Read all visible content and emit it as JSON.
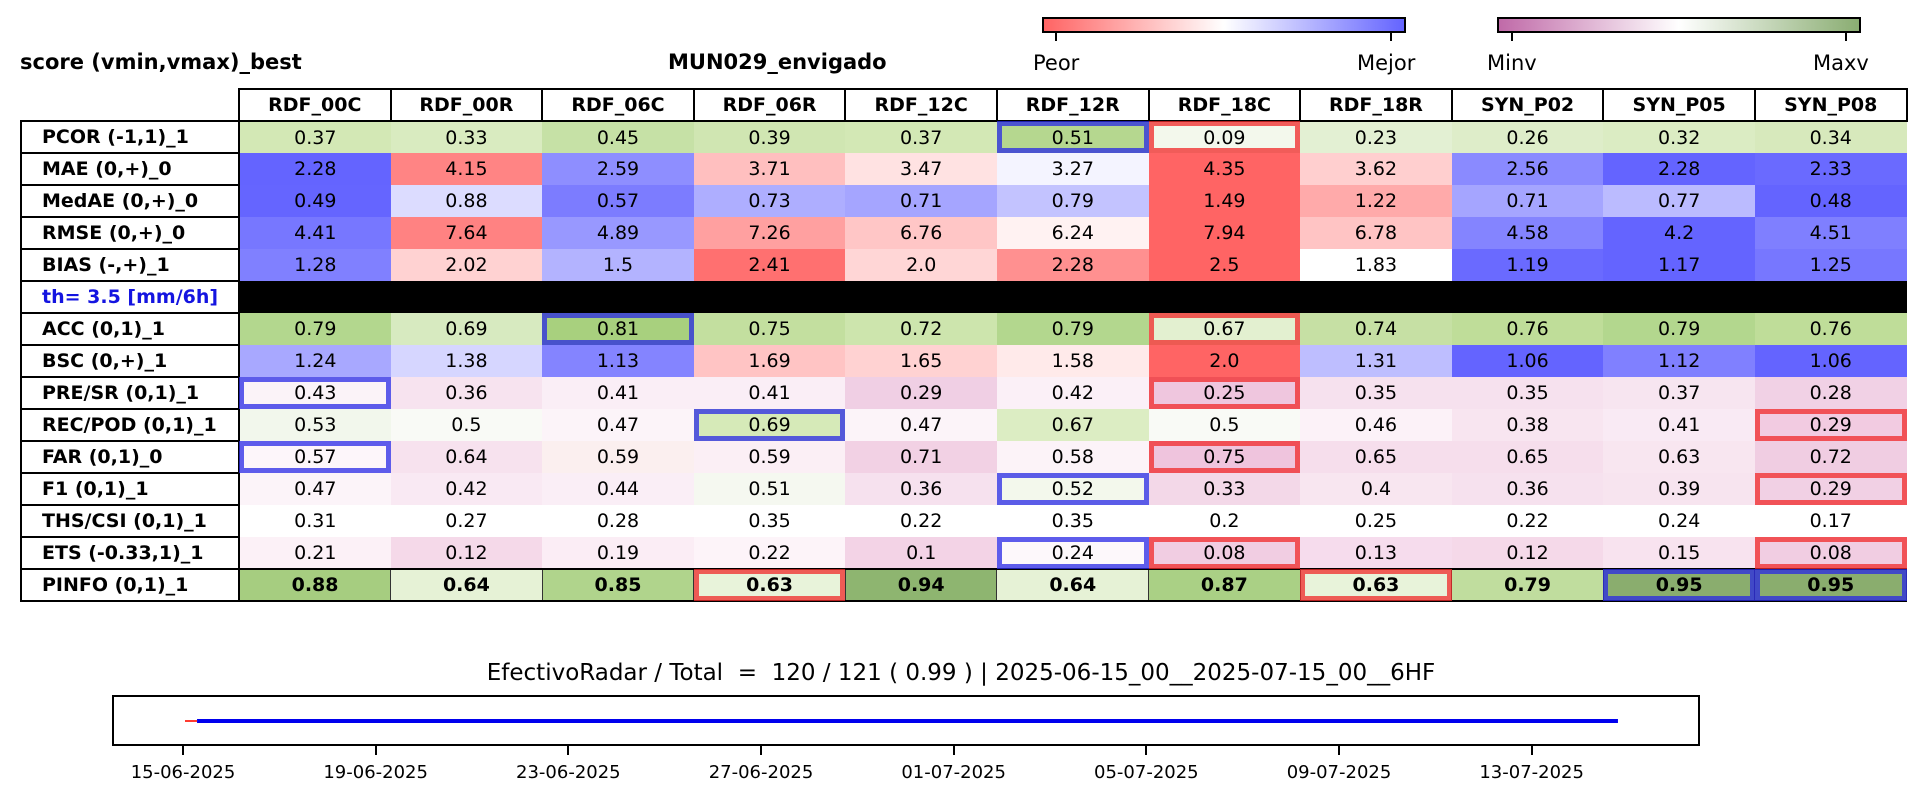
{
  "header": {
    "left_title": "score (vmin,vmax)_best",
    "station_title": "MUN029_envigado"
  },
  "colorbars": [
    {
      "min_label": "Peor",
      "max_label": "Mejor",
      "gradient": [
        "#ff6464",
        "#ffffff",
        "#6464ff"
      ]
    },
    {
      "min_label": "Minv",
      "max_label": "Maxv",
      "gradient": [
        "#c06aa8",
        "#ffffff",
        "#8aad72"
      ]
    }
  ],
  "columns": [
    "RDF_00C",
    "RDF_00R",
    "RDF_06C",
    "RDF_06R",
    "RDF_12C",
    "RDF_12R",
    "RDF_18C",
    "RDF_18R",
    "SYN_P02",
    "SYN_P05",
    "SYN_P08"
  ],
  "rows": [
    {
      "label": "PCOR (-1,1)_1",
      "values": [
        "0.37",
        "0.33",
        "0.45",
        "0.39",
        "0.37",
        "0.51",
        "0.09",
        "0.23",
        "0.26",
        "0.32",
        "0.34"
      ],
      "colors": [
        "#d3e8b5",
        "#d9ebc0",
        "#c6e1a6",
        "#d0e6b2",
        "#d3e8b5",
        "#b5d78f",
        "#f3f8ec",
        "#e3f0d3",
        "#deedc9",
        "#dbecc3",
        "#d7e9bc"
      ],
      "best": [
        5
      ],
      "worst": [
        6
      ]
    },
    {
      "label": "MAE (0,+)_0",
      "values": [
        "2.28",
        "4.15",
        "2.59",
        "3.71",
        "3.47",
        "3.27",
        "4.35",
        "3.62",
        "2.56",
        "2.28",
        "2.33"
      ],
      "colors": [
        "#6464ff",
        "#ff8484",
        "#8e8eff",
        "#ffbfbf",
        "#ffe2e2",
        "#f4f4ff",
        "#ff6464",
        "#ffcfcf",
        "#8a8aff",
        "#6464ff",
        "#6a6aff"
      ],
      "best": [],
      "worst": []
    },
    {
      "label": "MedAE (0,+)_0",
      "values": [
        "0.49",
        "0.88",
        "0.57",
        "0.73",
        "0.71",
        "0.79",
        "1.49",
        "1.22",
        "0.71",
        "0.77",
        "0.48"
      ],
      "colors": [
        "#6565ff",
        "#dcdcff",
        "#7c7cff",
        "#aeaeff",
        "#a5a5ff",
        "#c3c3ff",
        "#ff6464",
        "#ffaaaa",
        "#a5a5ff",
        "#bbbbff",
        "#6464ff"
      ],
      "best": [],
      "worst": []
    },
    {
      "label": "RMSE (0,+)_0",
      "values": [
        "4.41",
        "7.64",
        "4.89",
        "7.26",
        "6.76",
        "6.24",
        "7.94",
        "6.78",
        "4.58",
        "4.2",
        "4.51"
      ],
      "colors": [
        "#7777ff",
        "#ff8282",
        "#9898ff",
        "#ffa0a0",
        "#ffc6c6",
        "#fff2f2",
        "#ff6464",
        "#ffc4c4",
        "#8484ff",
        "#6464ff",
        "#7f7fff"
      ],
      "best": [],
      "worst": []
    },
    {
      "label": "BIAS (-,+)_1",
      "values": [
        "1.28",
        "2.02",
        "1.5",
        "2.41",
        "2.0",
        "2.28",
        "2.5",
        "1.83",
        "1.19",
        "1.17",
        "1.25"
      ],
      "colors": [
        "#8080ff",
        "#ffd2d2",
        "#b3b3ff",
        "#ff7070",
        "#ffd6d6",
        "#ff9090",
        "#ff6464",
        "#ffffff",
        "#6a6aff",
        "#6464ff",
        "#7777ff"
      ],
      "best": [],
      "worst": []
    },
    {
      "label": "th= 3.5 [mm/6h]",
      "separator": true
    },
    {
      "label": "ACC (0,1)_1",
      "values": [
        "0.79",
        "0.69",
        "0.81",
        "0.75",
        "0.72",
        "0.79",
        "0.67",
        "0.74",
        "0.76",
        "0.79",
        "0.76"
      ],
      "colors": [
        "#b3d78e",
        "#d7eac0",
        "#a8d07e",
        "#c3df9f",
        "#cde5ad",
        "#b3d78e",
        "#e3f0d0",
        "#c6e0a4",
        "#bfdd99",
        "#b3d78e",
        "#bfdd99"
      ],
      "best": [
        2
      ],
      "worst": [
        6
      ]
    },
    {
      "label": "BSC (0,+)_1",
      "values": [
        "1.24",
        "1.38",
        "1.13",
        "1.69",
        "1.65",
        "1.58",
        "2.0",
        "1.31",
        "1.06",
        "1.12",
        "1.06"
      ],
      "colors": [
        "#a8a8ff",
        "#d6d6ff",
        "#8484ff",
        "#ffc4c4",
        "#ffd2d2",
        "#ffeaea",
        "#ff6464",
        "#bebeff",
        "#6464ff",
        "#8080ff",
        "#6464ff"
      ],
      "best": [],
      "worst": []
    },
    {
      "label": "PRE/SR (0,1)_1",
      "values": [
        "0.43",
        "0.36",
        "0.41",
        "0.41",
        "0.29",
        "0.42",
        "0.25",
        "0.35",
        "0.35",
        "0.37",
        "0.28"
      ],
      "colors": [
        "#fbf3f8",
        "#f7e3ef",
        "#faeef6",
        "#faeef6",
        "#f0cfe4",
        "#fbf0f7",
        "#efc6de",
        "#f6e1ee",
        "#f6e1ee",
        "#f7e5f0",
        "#f1d1e5"
      ],
      "best": [
        0
      ],
      "worst": [
        6
      ]
    },
    {
      "label": "REC/POD (0,1)_1",
      "values": [
        "0.53",
        "0.5",
        "0.47",
        "0.69",
        "0.47",
        "0.67",
        "0.5",
        "0.46",
        "0.38",
        "0.41",
        "0.29"
      ],
      "colors": [
        "#f2f7ec",
        "#f9faf6",
        "#fcf4f9",
        "#d6eab8",
        "#fcf4f9",
        "#dcedc3",
        "#f9faf6",
        "#fcf2f8",
        "#f8e5f0",
        "#f9eaf4",
        "#f2cbe1"
      ],
      "best": [
        3
      ],
      "worst": [
        10
      ]
    },
    {
      "label": "FAR (0,1)_0",
      "values": [
        "0.57",
        "0.64",
        "0.59",
        "0.59",
        "0.71",
        "0.58",
        "0.75",
        "0.65",
        "0.65",
        "0.63",
        "0.72"
      ],
      "colors": [
        "#fdf6fa",
        "#f7e2ee",
        "#fbefef",
        "#fbeff5",
        "#f2d1e4",
        "#fcf3f8",
        "#efc4dd",
        "#f6deec",
        "#f6deec",
        "#f8e6f0",
        "#f0cde2"
      ],
      "best": [
        0
      ],
      "worst": [
        6
      ]
    },
    {
      "label": "F1 (0,1)_1",
      "values": [
        "0.47",
        "0.42",
        "0.44",
        "0.51",
        "0.36",
        "0.52",
        "0.33",
        "0.4",
        "0.36",
        "0.39",
        "0.29"
      ],
      "colors": [
        "#fcf4f9",
        "#f9e9f3",
        "#faeef6",
        "#f5f8f0",
        "#f6e1ee",
        "#f3f8ec",
        "#f3d8e8",
        "#f8e6f0",
        "#f6e1ee",
        "#f7e4ef",
        "#f1d0e4"
      ],
      "best": [
        5
      ],
      "worst": [
        10
      ]
    },
    {
      "label": "THS/CSI (0,1)_1",
      "values": [
        "0.31",
        "0.27",
        "0.28",
        "0.35",
        "0.22",
        "0.35",
        "0.2",
        "0.25",
        "0.22",
        "0.24",
        "0.17"
      ],
      "colors": [
        "#ffffff",
        "#ffffff",
        "#ffffff",
        "#ffffff",
        "#ffffff",
        "#ffffff",
        "#ffffff",
        "#ffffff",
        "#ffffff",
        "#ffffff",
        "#ffffff"
      ],
      "best": [],
      "worst": []
    },
    {
      "label": "ETS (-0.33,1)_1",
      "values": [
        "0.21",
        "0.12",
        "0.19",
        "0.22",
        "0.1",
        "0.24",
        "0.08",
        "0.13",
        "0.12",
        "0.15",
        "0.08"
      ],
      "colors": [
        "#fcf1f7",
        "#f5d9e9",
        "#fbedf5",
        "#fdf4f9",
        "#f3d3e6",
        "#fdf8fb",
        "#f1cde2",
        "#f6dced",
        "#f5d9e9",
        "#f8e3ef",
        "#f1cde2"
      ],
      "best": [
        5
      ],
      "worst": [
        6,
        10
      ]
    },
    {
      "label": "PINFO (0,1)_1",
      "values": [
        "0.88",
        "0.64",
        "0.85",
        "0.63",
        "0.94",
        "0.64",
        "0.87",
        "0.63",
        "0.79",
        "0.95",
        "0.95"
      ],
      "colors": [
        "#a6cd80",
        "#e6f2d6",
        "#b0d48c",
        "#e8f3da",
        "#8eb570",
        "#e6f2d6",
        "#aad085",
        "#e8f3da",
        "#c0dd9e",
        "#8aad6e",
        "#8aad6e"
      ],
      "best": [
        9,
        10
      ],
      "worst": [
        3,
        7
      ],
      "bold": true
    }
  ],
  "caption": "EfectivoRadar / Total  =  120 / 121 ( 0.99 ) | 2025-06-15_00__2025-07-15_00__6HF",
  "chart_data": {
    "type": "table",
    "title": "MUN029_envigado",
    "timeline": {
      "type": "line",
      "x_ticks": [
        "15-06-2025",
        "19-06-2025",
        "23-06-2025",
        "27-06-2025",
        "01-07-2025",
        "05-07-2025",
        "09-07-2025",
        "13-07-2025"
      ],
      "x_range": [
        "2025-06-15",
        "2025-07-15"
      ],
      "series": [
        {
          "color": "#0000ee",
          "x": [
            "2025-06-15T06",
            "2025-07-14T18"
          ]
        },
        {
          "color": "#ff3b30",
          "x": [
            "2025-06-15T00",
            "2025-06-15T06"
          ]
        }
      ]
    }
  }
}
